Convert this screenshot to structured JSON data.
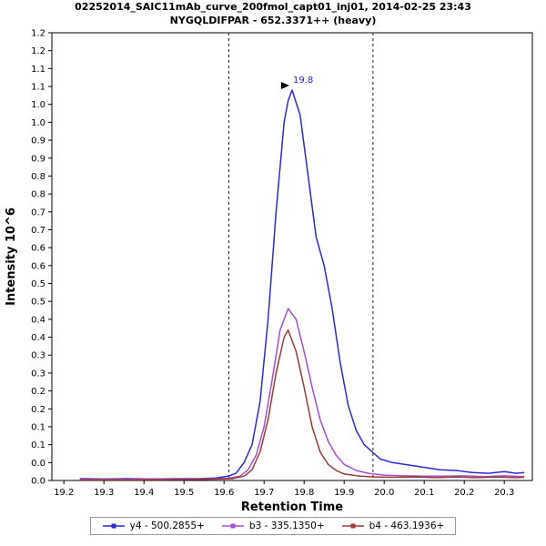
{
  "chart_data": {
    "type": "line",
    "title": "02252014_SAIC11mAb_curve_200fmol_capt01_inj01, 2014-02-25 23:43",
    "subtitle": "NYGQLDIFPAR - 652.3371++ (heavy)",
    "xlabel": "Retention Time",
    "ylabel": "Intensity 10^6",
    "xlim": [
      19.17,
      20.37
    ],
    "ylim": [
      0,
      1.25
    ],
    "grid": false,
    "legend_position": "bottom",
    "y_tick_step": 0.05,
    "y_tick_labels": [
      "0.0",
      "0.0",
      "0.1",
      "0.1",
      "0.2",
      "0.2",
      "0.3",
      "0.3",
      "0.4",
      "0.4",
      "0.5",
      "0.5",
      "0.6",
      "0.6",
      "0.7",
      "0.7",
      "0.8",
      "0.8",
      "0.9",
      "0.9",
      "1.0",
      "1.0",
      "1.1",
      "1.1",
      "1.2",
      "1.2"
    ],
    "x_ticks": [
      {
        "v": 19.2,
        "label": "19.2"
      },
      {
        "v": 19.3,
        "label": "19.3"
      },
      {
        "v": 19.4,
        "label": "19.4"
      },
      {
        "v": 19.5,
        "label": "19.5"
      },
      {
        "v": 19.6,
        "label": "19.6"
      },
      {
        "v": 19.7,
        "label": "19.7"
      },
      {
        "v": 19.8,
        "label": "19.8"
      },
      {
        "v": 19.9,
        "label": "19.9"
      },
      {
        "v": 20.0,
        "label": "20.0"
      },
      {
        "v": 20.1,
        "label": "20.1"
      },
      {
        "v": 20.2,
        "label": "20.2"
      },
      {
        "v": 20.3,
        "label": "20.3"
      }
    ],
    "boundaries": [
      19.612,
      19.972
    ],
    "annotation_color": "#2222cc",
    "peak_annotation": {
      "label": "19.8",
      "x": 19.77,
      "y": 1.09
    },
    "series": [
      {
        "id": "y4",
        "name": "y4 - 500.2855+",
        "color": "#2a2ad2",
        "points": [
          [
            19.24,
            0.005
          ],
          [
            19.3,
            0.004
          ],
          [
            19.36,
            0.005
          ],
          [
            19.42,
            0.004
          ],
          [
            19.48,
            0.005
          ],
          [
            19.54,
            0.005
          ],
          [
            19.58,
            0.007
          ],
          [
            19.61,
            0.012
          ],
          [
            19.63,
            0.02
          ],
          [
            19.65,
            0.05
          ],
          [
            19.67,
            0.1
          ],
          [
            19.69,
            0.22
          ],
          [
            19.71,
            0.45
          ],
          [
            19.73,
            0.75
          ],
          [
            19.75,
            1.0
          ],
          [
            19.76,
            1.06
          ],
          [
            19.77,
            1.09
          ],
          [
            19.79,
            1.02
          ],
          [
            19.81,
            0.85
          ],
          [
            19.83,
            0.68
          ],
          [
            19.85,
            0.6
          ],
          [
            19.87,
            0.48
          ],
          [
            19.89,
            0.33
          ],
          [
            19.91,
            0.21
          ],
          [
            19.93,
            0.14
          ],
          [
            19.95,
            0.1
          ],
          [
            19.97,
            0.08
          ],
          [
            19.99,
            0.06
          ],
          [
            20.02,
            0.05
          ],
          [
            20.05,
            0.045
          ],
          [
            20.08,
            0.04
          ],
          [
            20.11,
            0.035
          ],
          [
            20.14,
            0.03
          ],
          [
            20.18,
            0.028
          ],
          [
            20.22,
            0.022
          ],
          [
            20.26,
            0.02
          ],
          [
            20.3,
            0.025
          ],
          [
            20.33,
            0.02
          ],
          [
            20.35,
            0.022
          ]
        ]
      },
      {
        "id": "b3",
        "name": "b3 - 335.1350+",
        "color": "#a050d2",
        "points": [
          [
            19.24,
            0.003
          ],
          [
            19.35,
            0.003
          ],
          [
            19.45,
            0.004
          ],
          [
            19.55,
            0.004
          ],
          [
            19.61,
            0.006
          ],
          [
            19.64,
            0.012
          ],
          [
            19.66,
            0.03
          ],
          [
            19.68,
            0.07
          ],
          [
            19.7,
            0.15
          ],
          [
            19.72,
            0.28
          ],
          [
            19.74,
            0.42
          ],
          [
            19.76,
            0.48
          ],
          [
            19.78,
            0.45
          ],
          [
            19.8,
            0.36
          ],
          [
            19.82,
            0.26
          ],
          [
            19.84,
            0.17
          ],
          [
            19.86,
            0.11
          ],
          [
            19.88,
            0.07
          ],
          [
            19.9,
            0.045
          ],
          [
            19.93,
            0.028
          ],
          [
            19.96,
            0.02
          ],
          [
            20.0,
            0.015
          ],
          [
            20.05,
            0.013
          ],
          [
            20.1,
            0.012
          ],
          [
            20.15,
            0.012
          ],
          [
            20.2,
            0.013
          ],
          [
            20.25,
            0.011
          ],
          [
            20.3,
            0.013
          ],
          [
            20.35,
            0.011
          ]
        ]
      },
      {
        "id": "b4",
        "name": "b4 - 463.1936+",
        "color": "#9e3a38",
        "points": [
          [
            19.24,
            0.002
          ],
          [
            19.4,
            0.002
          ],
          [
            19.55,
            0.003
          ],
          [
            19.62,
            0.005
          ],
          [
            19.65,
            0.012
          ],
          [
            19.67,
            0.03
          ],
          [
            19.69,
            0.08
          ],
          [
            19.71,
            0.17
          ],
          [
            19.73,
            0.3
          ],
          [
            19.75,
            0.4
          ],
          [
            19.76,
            0.42
          ],
          [
            19.78,
            0.36
          ],
          [
            19.8,
            0.26
          ],
          [
            19.82,
            0.15
          ],
          [
            19.84,
            0.08
          ],
          [
            19.86,
            0.045
          ],
          [
            19.88,
            0.028
          ],
          [
            19.9,
            0.018
          ],
          [
            19.94,
            0.012
          ],
          [
            19.98,
            0.01
          ],
          [
            20.03,
            0.009
          ],
          [
            20.08,
            0.01
          ],
          [
            20.13,
            0.008
          ],
          [
            20.18,
            0.01
          ],
          [
            20.23,
            0.008
          ],
          [
            20.28,
            0.01
          ],
          [
            20.33,
            0.008
          ],
          [
            20.35,
            0.009
          ]
        ]
      }
    ]
  }
}
